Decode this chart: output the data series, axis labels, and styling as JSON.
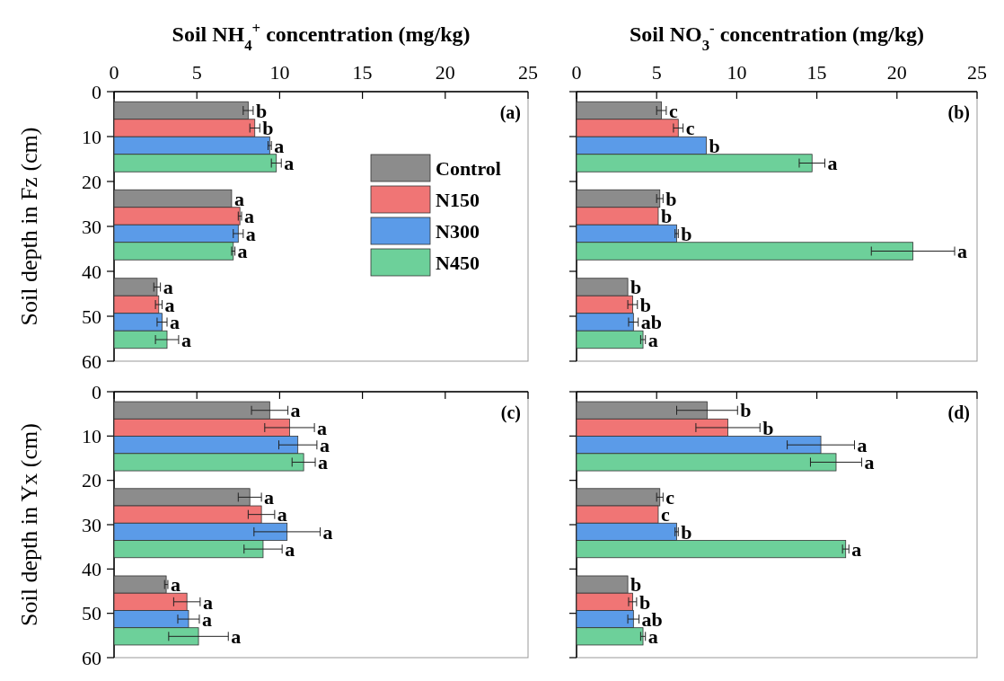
{
  "chart_data": [
    {
      "type": "bar",
      "orientation": "horizontal",
      "xlabel": "Soil NH$_{4}$$^{+}$ concentration (mg/kg)",
      "ylabel": "Soil depth in Fz (cm)",
      "xlim": [
        0,
        25
      ],
      "xticks": [
        0,
        5,
        10,
        15,
        20,
        25
      ],
      "ylim": [
        60,
        0
      ],
      "yticks": [
        0,
        10,
        20,
        30,
        40,
        50,
        60
      ],
      "legend": "right",
      "annotations": [
        "(a)"
      ],
      "series": [
        {
          "name": "Control",
          "color": "#8c8c8c",
          "x": [
            4.2,
            23.8,
            43.5
          ],
          "values": [
            8.1,
            7.1,
            2.6
          ],
          "errors": [
            0.3,
            null,
            0.2
          ],
          "value_labels": [
            "b",
            "a",
            "a"
          ]
        },
        {
          "name": "N150",
          "color": "#f07575",
          "x": [
            8.1,
            27.7,
            47.4
          ],
          "values": [
            8.5,
            7.6,
            2.7
          ],
          "errors": [
            0.3,
            0.1,
            0.2
          ],
          "value_labels": [
            "b",
            "a",
            "a"
          ]
        },
        {
          "name": "N300",
          "color": "#5b9be8",
          "x": [
            12,
            31.6,
            51.3
          ],
          "values": [
            9.4,
            7.5,
            2.9
          ],
          "errors": [
            0.1,
            0.3,
            0.3
          ],
          "value_labels": [
            "a",
            "a",
            "a"
          ]
        },
        {
          "name": "N450",
          "color": "#6dd09a",
          "x": [
            15.9,
            35.5,
            55.2
          ],
          "values": [
            9.8,
            7.2,
            3.2
          ],
          "errors": [
            0.3,
            0.1,
            0.7
          ],
          "value_labels": [
            "a",
            "a",
            "a"
          ]
        }
      ]
    },
    {
      "type": "bar",
      "orientation": "horizontal",
      "xlabel": "Soil NO$_{3}$$^{-}$ concentration (mg/kg)",
      "xlim": [
        0,
        25
      ],
      "xticks": [
        0,
        5,
        10,
        15,
        20,
        25
      ],
      "ylim": [
        60,
        0
      ],
      "yticks": [
        0,
        10,
        20,
        30,
        40,
        50,
        60
      ],
      "tick_labels": "x",
      "annotations": [
        "(b)"
      ],
      "series": [
        {
          "color": "#8c8c8c",
          "x": [
            4.2,
            23.8,
            43.5
          ],
          "values": [
            5.3,
            5.2,
            3.2
          ],
          "errors": [
            0.3,
            0.2,
            null
          ],
          "value_labels": [
            "c",
            "b",
            "b"
          ]
        },
        {
          "color": "#f07575",
          "x": [
            8.1,
            27.7,
            47.4
          ],
          "values": [
            6.35,
            5.1,
            3.5
          ],
          "errors": [
            0.3,
            null,
            0.3
          ],
          "value_labels": [
            "c",
            "b",
            "b"
          ]
        },
        {
          "color": "#5b9be8",
          "x": [
            12,
            31.6,
            51.3
          ],
          "values": [
            8.1,
            6.25,
            3.55
          ],
          "errors": [
            null,
            0.1,
            0.3
          ],
          "value_labels": [
            "b",
            "b",
            "ab"
          ]
        },
        {
          "color": "#6dd09a",
          "x": [
            15.9,
            35.5,
            55.2
          ],
          "values": [
            14.7,
            21,
            4.15
          ],
          "errors": [
            0.8,
            2.6,
            0.15
          ],
          "value_labels": [
            "a",
            "a",
            "a"
          ]
        }
      ]
    },
    {
      "type": "bar",
      "orientation": "horizontal",
      "ylabel": "Soil depth in Yx (cm)",
      "xlim": [
        0,
        25
      ],
      "xticks": [
        0,
        5,
        10,
        15,
        20,
        25
      ],
      "ylim": [
        60,
        0
      ],
      "yticks": [
        0,
        10,
        20,
        30,
        40,
        50,
        60
      ],
      "tick_labels": "y",
      "annotations": [
        "(c)"
      ],
      "series": [
        {
          "color": "#8c8c8c",
          "x": [
            4.2,
            23.8,
            43.5
          ],
          "values": [
            9.4,
            8.2,
            3.15
          ],
          "errors": [
            1.1,
            0.7,
            0.1
          ],
          "value_labels": [
            "a",
            "a",
            "a"
          ]
        },
        {
          "color": "#f07575",
          "x": [
            8.1,
            27.7,
            47.4
          ],
          "values": [
            10.6,
            8.9,
            4.4
          ],
          "errors": [
            1.5,
            0.8,
            0.8
          ],
          "value_labels": [
            "a",
            "a",
            "a"
          ]
        },
        {
          "color": "#5b9be8",
          "x": [
            12,
            31.6,
            51.3
          ],
          "values": [
            11.1,
            10.45,
            4.5
          ],
          "errors": [
            1.15,
            2,
            0.65
          ],
          "value_labels": [
            "a",
            "a",
            "a"
          ]
        },
        {
          "color": "#6dd09a",
          "x": [
            15.9,
            35.5,
            55.2
          ],
          "values": [
            11.45,
            9,
            5.1
          ],
          "errors": [
            0.7,
            1.15,
            1.8
          ],
          "value_labels": [
            "a",
            "a",
            "a"
          ]
        }
      ]
    },
    {
      "type": "bar",
      "orientation": "horizontal",
      "xlim": [
        0,
        25
      ],
      "xticks": [
        0,
        5,
        10,
        15,
        20,
        25
      ],
      "ylim": [
        60,
        0
      ],
      "yticks": [
        0,
        10,
        20,
        30,
        40,
        50,
        60
      ],
      "tick_labels": false,
      "annotations": [
        "(d)"
      ],
      "series": [
        {
          "color": "#8c8c8c",
          "x": [
            4.2,
            23.8,
            43.5
          ],
          "values": [
            8.15,
            5.2,
            3.2
          ],
          "errors": [
            1.9,
            0.2,
            null
          ],
          "value_labels": [
            "b",
            "c",
            "b"
          ]
        },
        {
          "color": "#f07575",
          "x": [
            8.1,
            27.7,
            47.4
          ],
          "values": [
            9.45,
            5.1,
            3.5
          ],
          "errors": [
            2,
            null,
            0.25
          ],
          "value_labels": [
            "b",
            "c",
            "b"
          ]
        },
        {
          "color": "#5b9be8",
          "x": [
            12,
            31.6,
            51.3
          ],
          "values": [
            15.25,
            6.25,
            3.55
          ],
          "errors": [
            2.1,
            0.1,
            0.35
          ],
          "value_labels": [
            "a",
            "b",
            "ab"
          ]
        },
        {
          "color": "#6dd09a",
          "x": [
            15.9,
            35.5,
            55.2
          ],
          "values": [
            16.2,
            16.8,
            4.15
          ],
          "errors": [
            1.6,
            0.2,
            0.15
          ],
          "value_labels": [
            "a",
            "a",
            "a"
          ]
        }
      ]
    }
  ]
}
